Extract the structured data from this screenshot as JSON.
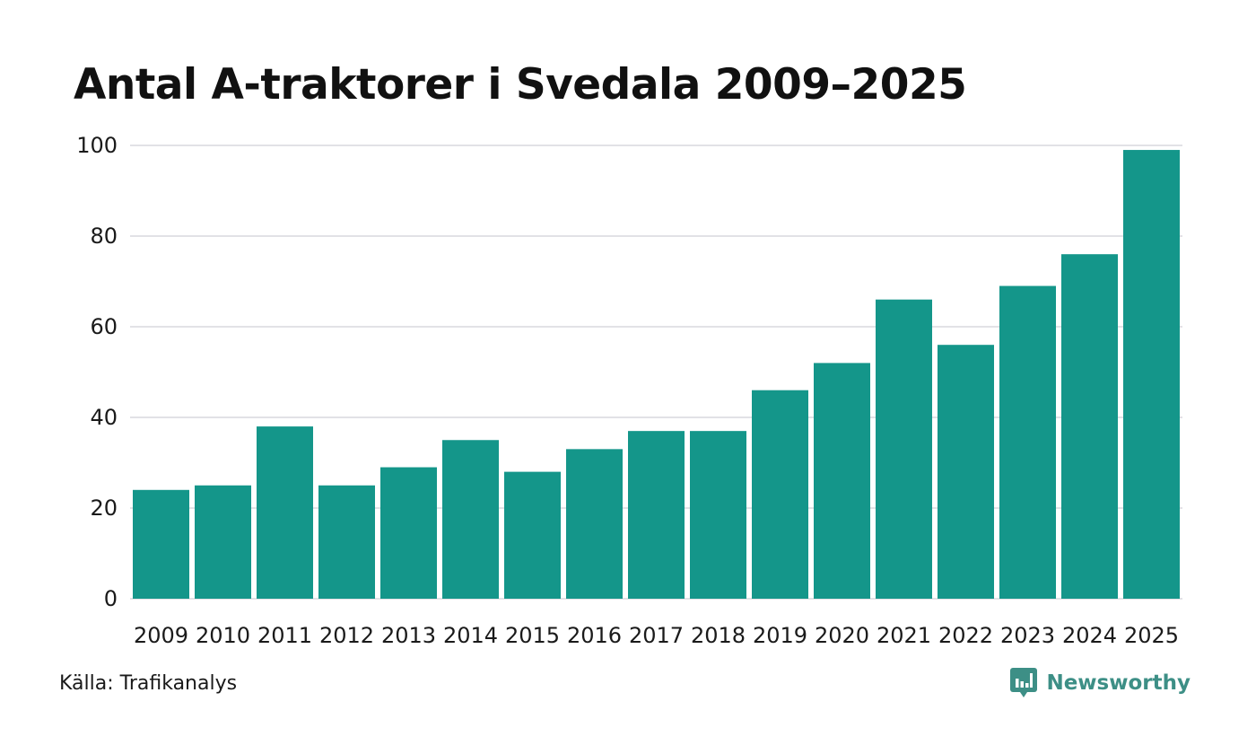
{
  "chart_data": {
    "type": "bar",
    "title": "Antal A-traktorer i Svedala 2009–2025",
    "categories": [
      "2009",
      "2010",
      "2011",
      "2012",
      "2013",
      "2014",
      "2015",
      "2016",
      "2017",
      "2018",
      "2019",
      "2020",
      "2021",
      "2022",
      "2023",
      "2024",
      "2025"
    ],
    "values": [
      24,
      25,
      38,
      25,
      29,
      35,
      28,
      33,
      37,
      37,
      46,
      52,
      66,
      56,
      69,
      76,
      99
    ],
    "xlabel": "",
    "ylabel": "",
    "ylim": [
      0,
      100
    ],
    "yticks": [
      "0",
      "20",
      "40",
      "60",
      "80",
      "100"
    ],
    "grid": true,
    "bar_color": "#14968a",
    "grid_color": "#e2e2e6"
  },
  "footer": {
    "source": "Källa: Trafikanalys",
    "brand": "Newsworthy",
    "brand_icon": "newsworthy-logo-icon",
    "brand_color": "#3d8f86"
  }
}
